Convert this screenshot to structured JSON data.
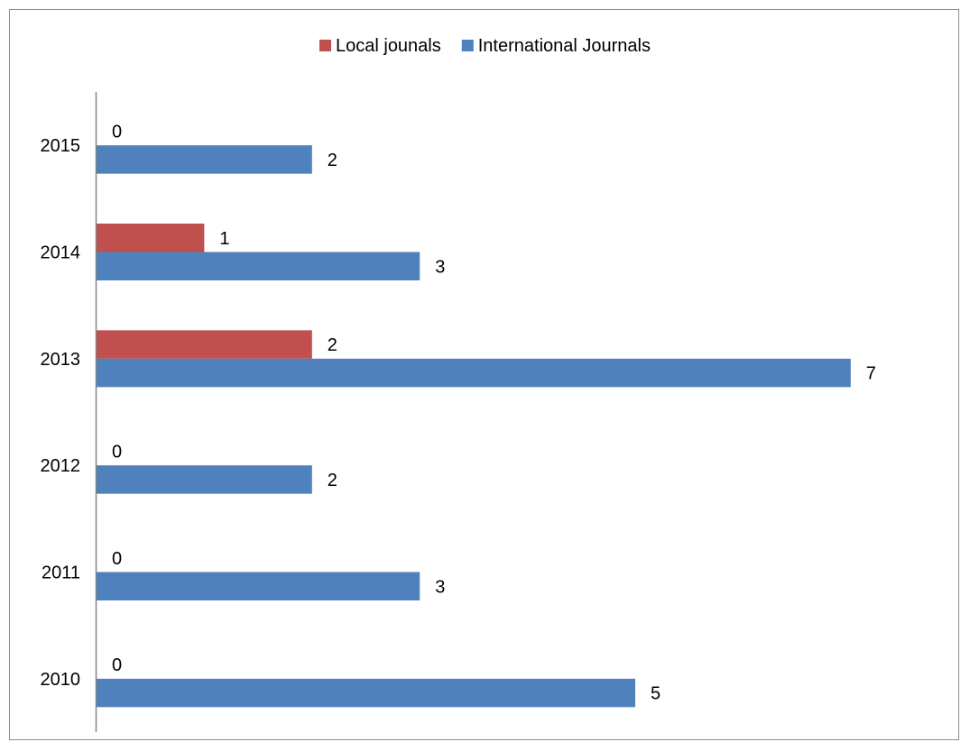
{
  "chart_data": {
    "type": "bar",
    "orientation": "horizontal",
    "categories": [
      "2010",
      "2011",
      "2012",
      "2013",
      "2014",
      "2015"
    ],
    "series": [
      {
        "name": "Local jounals",
        "color": "#c0504d",
        "values": [
          0,
          0,
          0,
          2,
          1,
          0
        ]
      },
      {
        "name": "International Journals",
        "color": "#4f81bd",
        "values": [
          5,
          3,
          2,
          7,
          3,
          2
        ]
      }
    ],
    "title": "",
    "xlabel": "",
    "ylabel": "",
    "xlim": [
      0,
      7
    ],
    "grid": false,
    "legend": "top",
    "data_labels": true
  }
}
